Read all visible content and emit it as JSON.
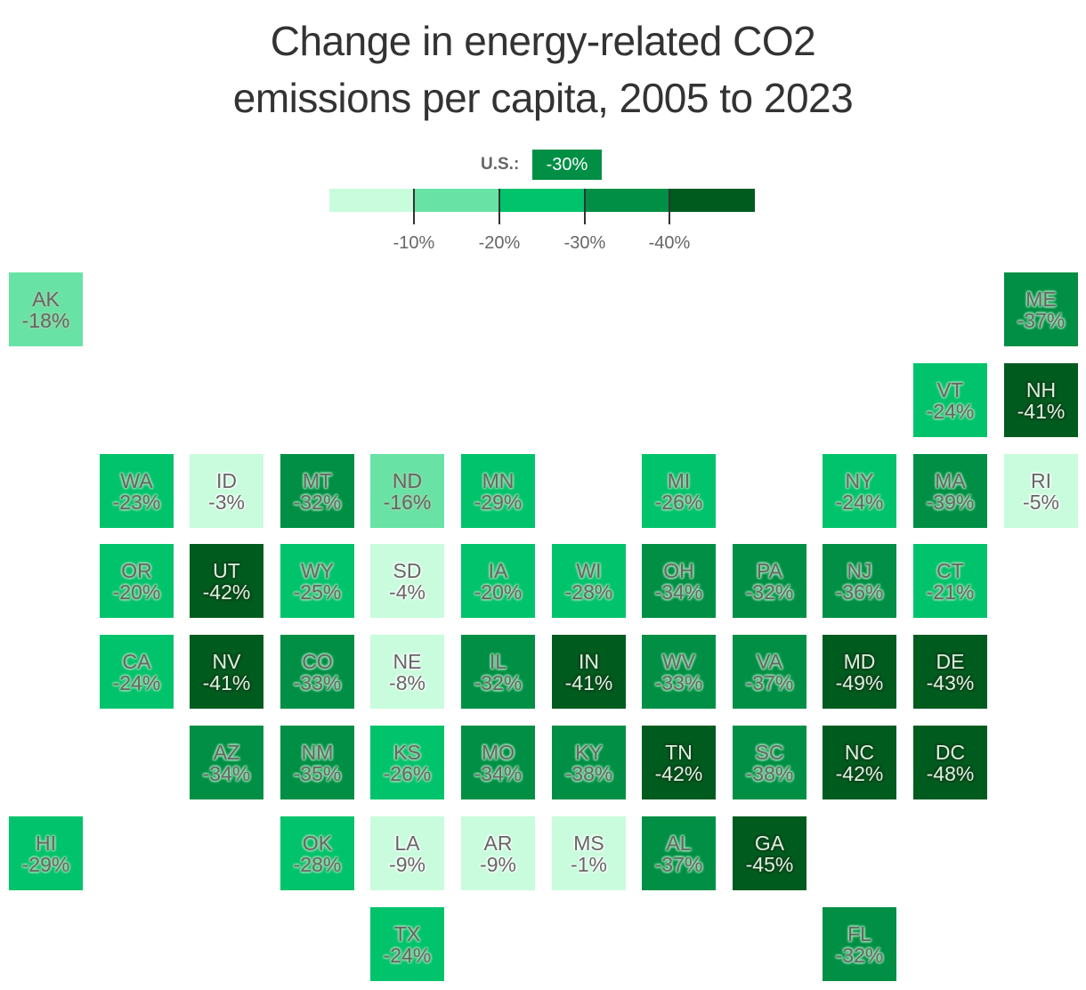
{
  "title_line1": "Change in energy-related CO2",
  "title_line2": "emissions per capita, 2005 to 2023",
  "us_summary": {
    "label": "U.S.:",
    "value": "-30%",
    "color": "#008f45"
  },
  "legend": {
    "colors": [
      "#c8fcdc",
      "#68e3a5",
      "#00c36b",
      "#008f45",
      "#005b1f"
    ],
    "ticks": [
      "-10%",
      "-20%",
      "-30%",
      "-40%"
    ]
  },
  "chart_data": {
    "type": "heatmap",
    "title": "Change in energy-related CO2 emissions per capita, 2005 to 2023",
    "subtitle": "U.S.: -30%",
    "legend_bins": [
      {
        "range": "0% to -10%",
        "color": "#c8fcdc"
      },
      {
        "range": "-10% to -20%",
        "color": "#68e3a5"
      },
      {
        "range": "-20% to -30%",
        "color": "#00c36b"
      },
      {
        "range": "-30% to -40%",
        "color": "#008f45"
      },
      {
        "range": "below -40%",
        "color": "#005b1f"
      }
    ],
    "us_average": -30,
    "states": [
      {
        "state": "AK",
        "value": -18,
        "row": 0,
        "col": 0
      },
      {
        "state": "ME",
        "value": -37,
        "row": 0,
        "col": 11
      },
      {
        "state": "VT",
        "value": -24,
        "row": 1,
        "col": 10
      },
      {
        "state": "NH",
        "value": -41,
        "row": 1,
        "col": 11
      },
      {
        "state": "WA",
        "value": -23,
        "row": 2,
        "col": 1
      },
      {
        "state": "ID",
        "value": -3,
        "row": 2,
        "col": 2
      },
      {
        "state": "MT",
        "value": -32,
        "row": 2,
        "col": 3
      },
      {
        "state": "ND",
        "value": -16,
        "row": 2,
        "col": 4
      },
      {
        "state": "MN",
        "value": -29,
        "row": 2,
        "col": 5
      },
      {
        "state": "MI",
        "value": -26,
        "row": 2,
        "col": 7
      },
      {
        "state": "NY",
        "value": -24,
        "row": 2,
        "col": 9
      },
      {
        "state": "MA",
        "value": -39,
        "row": 2,
        "col": 10
      },
      {
        "state": "RI",
        "value": -5,
        "row": 2,
        "col": 11
      },
      {
        "state": "OR",
        "value": -20,
        "row": 3,
        "col": 1
      },
      {
        "state": "UT",
        "value": -42,
        "row": 3,
        "col": 2
      },
      {
        "state": "WY",
        "value": -25,
        "row": 3,
        "col": 3
      },
      {
        "state": "SD",
        "value": -4,
        "row": 3,
        "col": 4
      },
      {
        "state": "IA",
        "value": -20,
        "row": 3,
        "col": 5
      },
      {
        "state": "WI",
        "value": -28,
        "row": 3,
        "col": 6
      },
      {
        "state": "OH",
        "value": -34,
        "row": 3,
        "col": 7
      },
      {
        "state": "PA",
        "value": -32,
        "row": 3,
        "col": 8
      },
      {
        "state": "NJ",
        "value": -36,
        "row": 3,
        "col": 9
      },
      {
        "state": "CT",
        "value": -21,
        "row": 3,
        "col": 10
      },
      {
        "state": "CA",
        "value": -24,
        "row": 4,
        "col": 1
      },
      {
        "state": "NV",
        "value": -41,
        "row": 4,
        "col": 2
      },
      {
        "state": "CO",
        "value": -33,
        "row": 4,
        "col": 3
      },
      {
        "state": "NE",
        "value": -8,
        "row": 4,
        "col": 4
      },
      {
        "state": "IL",
        "value": -32,
        "row": 4,
        "col": 5
      },
      {
        "state": "IN",
        "value": -41,
        "row": 4,
        "col": 6
      },
      {
        "state": "WV",
        "value": -33,
        "row": 4,
        "col": 7
      },
      {
        "state": "VA",
        "value": -37,
        "row": 4,
        "col": 8
      },
      {
        "state": "MD",
        "value": -49,
        "row": 4,
        "col": 9
      },
      {
        "state": "DE",
        "value": -43,
        "row": 4,
        "col": 10
      },
      {
        "state": "AZ",
        "value": -34,
        "row": 5,
        "col": 2
      },
      {
        "state": "NM",
        "value": -35,
        "row": 5,
        "col": 3
      },
      {
        "state": "KS",
        "value": -26,
        "row": 5,
        "col": 4
      },
      {
        "state": "MO",
        "value": -34,
        "row": 5,
        "col": 5
      },
      {
        "state": "KY",
        "value": -38,
        "row": 5,
        "col": 6
      },
      {
        "state": "TN",
        "value": -42,
        "row": 5,
        "col": 7
      },
      {
        "state": "SC",
        "value": -38,
        "row": 5,
        "col": 8
      },
      {
        "state": "NC",
        "value": -42,
        "row": 5,
        "col": 9
      },
      {
        "state": "DC",
        "value": -48,
        "row": 5,
        "col": 10
      },
      {
        "state": "HI",
        "value": -29,
        "row": 6,
        "col": 0
      },
      {
        "state": "OK",
        "value": -28,
        "row": 6,
        "col": 3
      },
      {
        "state": "LA",
        "value": -9,
        "row": 6,
        "col": 4
      },
      {
        "state": "AR",
        "value": -9,
        "row": 6,
        "col": 5
      },
      {
        "state": "MS",
        "value": -1,
        "row": 6,
        "col": 6
      },
      {
        "state": "AL",
        "value": -37,
        "row": 6,
        "col": 7
      },
      {
        "state": "GA",
        "value": -45,
        "row": 6,
        "col": 8
      },
      {
        "state": "TX",
        "value": -24,
        "row": 7,
        "col": 4
      },
      {
        "state": "FL",
        "value": -32,
        "row": 7,
        "col": 9
      }
    ]
  }
}
